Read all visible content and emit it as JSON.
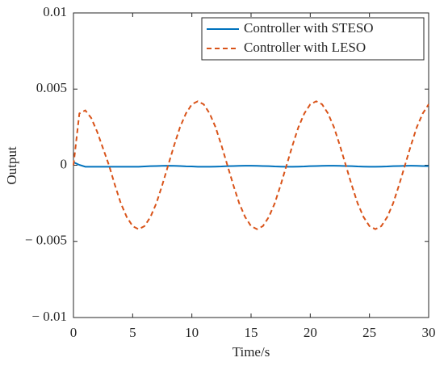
{
  "chart_data": {
    "type": "line",
    "xlabel": "Time/s",
    "ylabel": "Output",
    "x": [
      0,
      0.5,
      1,
      1.5,
      2,
      2.5,
      3,
      3.5,
      4,
      4.5,
      5,
      5.5,
      6,
      6.5,
      7,
      7.5,
      8,
      8.5,
      9,
      9.5,
      10,
      10.5,
      11,
      11.5,
      12,
      12.5,
      13,
      13.5,
      14,
      14.5,
      15,
      15.5,
      16,
      16.5,
      17,
      17.5,
      18,
      18.5,
      19,
      19.5,
      20,
      20.5,
      21,
      21.5,
      22,
      22.5,
      23,
      23.5,
      24,
      24.5,
      25,
      25.5,
      26,
      26.5,
      27,
      27.5,
      28,
      28.5,
      29,
      29.5,
      30
    ],
    "series": [
      {
        "name": "Controller with STESO",
        "color": "#0072bd",
        "dash": false,
        "values": [
          0.0002,
          2e-05,
          -0.0001,
          -0.0001,
          -0.0001,
          -0.0001,
          -0.0001,
          -0.0001,
          -0.0001,
          -0.0001,
          -0.0001,
          -0.0001,
          -8e-05,
          -6e-05,
          -5e-05,
          -4e-05,
          -3e-05,
          -4e-05,
          -5e-05,
          -7e-05,
          -8e-05,
          -0.0001,
          -0.0001,
          -0.0001,
          -9e-05,
          -8e-05,
          -6e-05,
          -5e-05,
          -4e-05,
          -3e-05,
          -3e-05,
          -4e-05,
          -5e-05,
          -6e-05,
          -8e-05,
          -9e-05,
          -0.0001,
          -0.0001,
          -9e-05,
          -8e-05,
          -6e-05,
          -5e-05,
          -4e-05,
          -3e-05,
          -3e-05,
          -4e-05,
          -5e-05,
          -6e-05,
          -8e-05,
          -9e-05,
          -0.0001,
          -0.0001,
          -9e-05,
          -8e-05,
          -6e-05,
          -5e-05,
          -4e-05,
          -3e-05,
          -4e-05,
          -5e-05,
          -6e-05
        ]
      },
      {
        "name": "Controller with LESO",
        "color": "#d95319",
        "dash": true,
        "values": [
          0,
          0.0034,
          0.0036,
          0.0031,
          0.0022,
          0.0011,
          0,
          -0.0013,
          -0.0025,
          -0.0034,
          -0.004,
          -0.0042,
          -0.004,
          -0.0034,
          -0.0025,
          -0.0013,
          0,
          0.0013,
          0.0025,
          0.0034,
          0.004,
          0.0042,
          0.004,
          0.0034,
          0.0025,
          0.0013,
          0,
          -0.0013,
          -0.0025,
          -0.0034,
          -0.004,
          -0.0042,
          -0.004,
          -0.0034,
          -0.0025,
          -0.0013,
          0,
          0.0013,
          0.0025,
          0.0034,
          0.004,
          0.0042,
          0.004,
          0.0034,
          0.0025,
          0.0013,
          0,
          -0.0013,
          -0.0025,
          -0.0034,
          -0.004,
          -0.0042,
          -0.004,
          -0.0034,
          -0.0025,
          -0.0013,
          0,
          0.0013,
          0.0025,
          0.0034,
          0.004
        ]
      }
    ],
    "xlim": [
      0,
      30
    ],
    "xticks": [
      0,
      5,
      10,
      15,
      20,
      25,
      30
    ],
    "ylim": [
      -0.01,
      0.01
    ],
    "yticks": [
      {
        "value": -0.01,
        "label": "− 0.01"
      },
      {
        "value": -0.005,
        "label": "− 0.005"
      },
      0,
      0.005,
      0.01
    ],
    "legend": "top-right",
    "grid": false
  }
}
